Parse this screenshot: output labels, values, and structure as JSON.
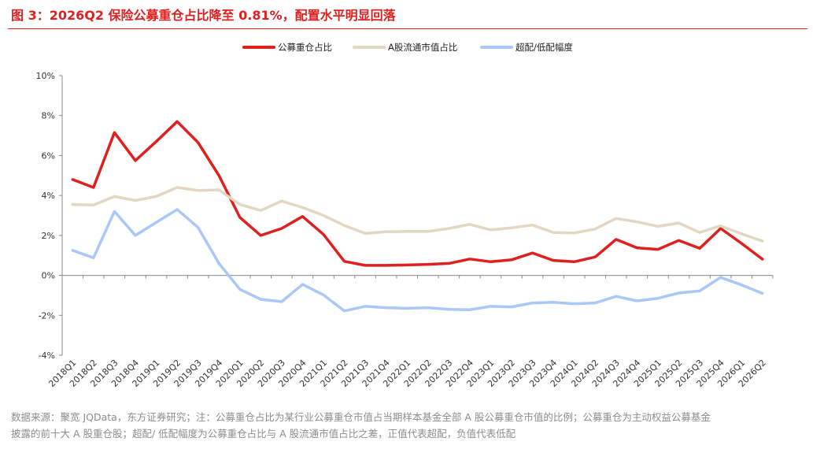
{
  "title": "图 3：2026Q2 保险公募重仓占比降至 0.81%，配置水平明显回落",
  "footer": {
    "line1": "数据来源：聚宽 JQData，东方证券研究；注：公募重仓占比为某行业公募重仓市值占当期样本基金全部 A 股公募重仓市值的比例；公募重仓为主动权益公募基金",
    "line2": "披露的前十大 A 股重仓股；超配/ 低配幅度为公募重仓占比与 A 股流通市值占比之差，正值代表超配，负值代表低配"
  },
  "chart_data": {
    "type": "line",
    "categories": [
      "2018Q1",
      "2018Q2",
      "2018Q3",
      "2018Q4",
      "2019Q1",
      "2019Q2",
      "2019Q3",
      "2019Q4",
      "2020Q1",
      "2020Q2",
      "2020Q3",
      "2020Q4",
      "2021Q1",
      "2021Q2",
      "2021Q3",
      "2021Q4",
      "2022Q1",
      "2022Q2",
      "2022Q3",
      "2022Q4",
      "2023Q1",
      "2023Q2",
      "2023Q3",
      "2023Q4",
      "2024Q1",
      "2024Q2",
      "2024Q3",
      "2024Q4",
      "2025Q1",
      "2025Q2",
      "2025Q3",
      "2025Q4",
      "2026Q1",
      "2026Q2"
    ],
    "series": [
      {
        "name": "公募重仓占比",
        "color": "#e0201f",
        "values": [
          4.8,
          4.4,
          7.15,
          5.75,
          6.7,
          7.7,
          6.65,
          5.0,
          2.9,
          2.0,
          2.35,
          2.95,
          2.05,
          0.7,
          0.5,
          0.5,
          0.52,
          0.55,
          0.6,
          0.82,
          0.68,
          0.78,
          1.12,
          0.75,
          0.68,
          0.92,
          1.8,
          1.38,
          1.3,
          1.75,
          1.35,
          2.35,
          1.6,
          0.81
        ]
      },
      {
        "name": "A股流通市值占比",
        "color": "#e1d7c2",
        "values": [
          3.55,
          3.52,
          3.95,
          3.75,
          3.95,
          4.4,
          4.25,
          4.28,
          3.55,
          3.25,
          3.72,
          3.4,
          3.0,
          2.5,
          2.1,
          2.18,
          2.2,
          2.2,
          2.35,
          2.55,
          2.28,
          2.38,
          2.52,
          2.15,
          2.12,
          2.32,
          2.85,
          2.68,
          2.45,
          2.62,
          2.15,
          2.48,
          2.08,
          1.72
        ]
      },
      {
        "name": "超配/低配幅度",
        "color": "#a9c8f8",
        "values": [
          1.25,
          0.88,
          3.2,
          2.0,
          2.65,
          3.3,
          2.4,
          0.6,
          -0.7,
          -1.2,
          -1.32,
          -0.45,
          -0.98,
          -1.78,
          -1.55,
          -1.62,
          -1.65,
          -1.62,
          -1.7,
          -1.72,
          -1.55,
          -1.58,
          -1.38,
          -1.35,
          -1.42,
          -1.38,
          -1.05,
          -1.28,
          -1.15,
          -0.88,
          -0.78,
          -0.1,
          -0.48,
          -0.9
        ]
      }
    ],
    "y_ticks": [
      "10%",
      "8%",
      "6%",
      "4%",
      "2%",
      "0%",
      "-2%",
      "-4%"
    ],
    "ylim": [
      -4,
      10
    ],
    "grid": false,
    "legend_placement": "top-center"
  }
}
